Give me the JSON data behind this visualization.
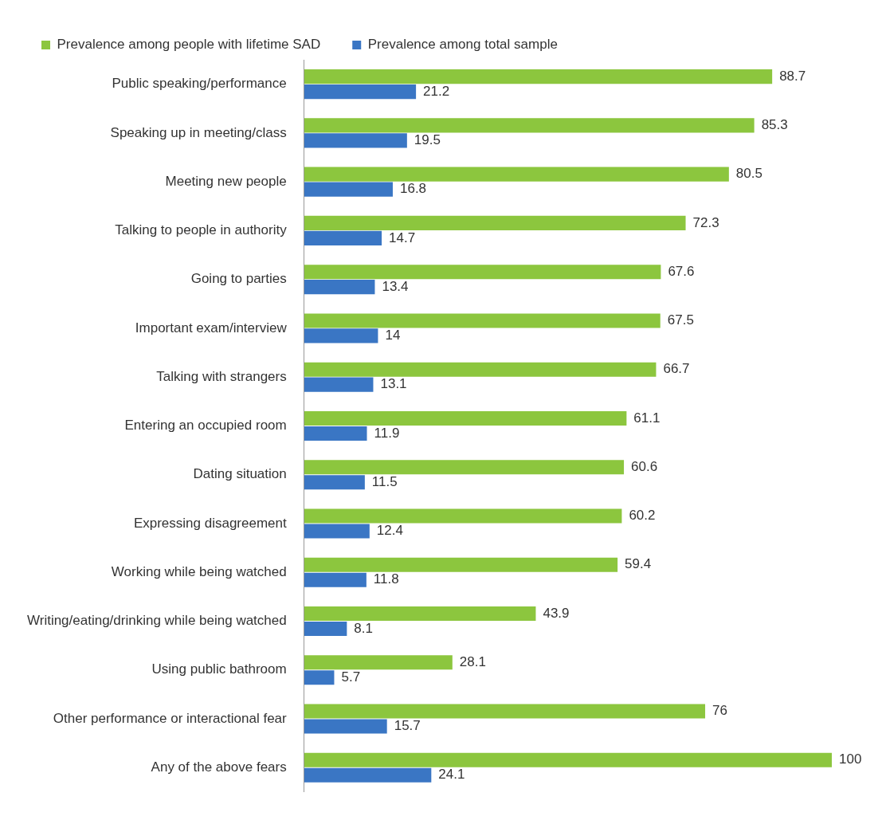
{
  "chart_data": {
    "type": "bar",
    "orientation": "horizontal",
    "data_labels": true,
    "legend": "top left",
    "categories": [
      "Public speaking/performance",
      "Speaking up in meeting/class",
      "Meeting new people",
      "Talking to people in authority",
      "Going to parties",
      "Important exam/interview",
      "Talking with strangers",
      "Entering an occupied room",
      "Dating situation",
      "Expressing disagreement",
      "Working while being watched",
      "Writing/eating/drinking while being watched",
      "Using public bathroom",
      "Other performance or interactional fear",
      "Any of the above fears"
    ],
    "series": [
      {
        "name": "Prevalence among people with lifetime SAD",
        "color": "#8cc63e",
        "values": [
          88.7,
          85.3,
          80.5,
          72.3,
          67.6,
          67.5,
          66.7,
          61.1,
          60.6,
          60.2,
          59.4,
          43.9,
          28.1,
          76,
          100
        ]
      },
      {
        "name": "Prevalence among total sample",
        "color": "#3a76c4",
        "values": [
          21.2,
          19.5,
          16.8,
          14.7,
          13.4,
          14,
          13.1,
          11.9,
          11.5,
          12.4,
          11.8,
          8.1,
          5.7,
          15.7,
          24.1
        ]
      }
    ]
  }
}
